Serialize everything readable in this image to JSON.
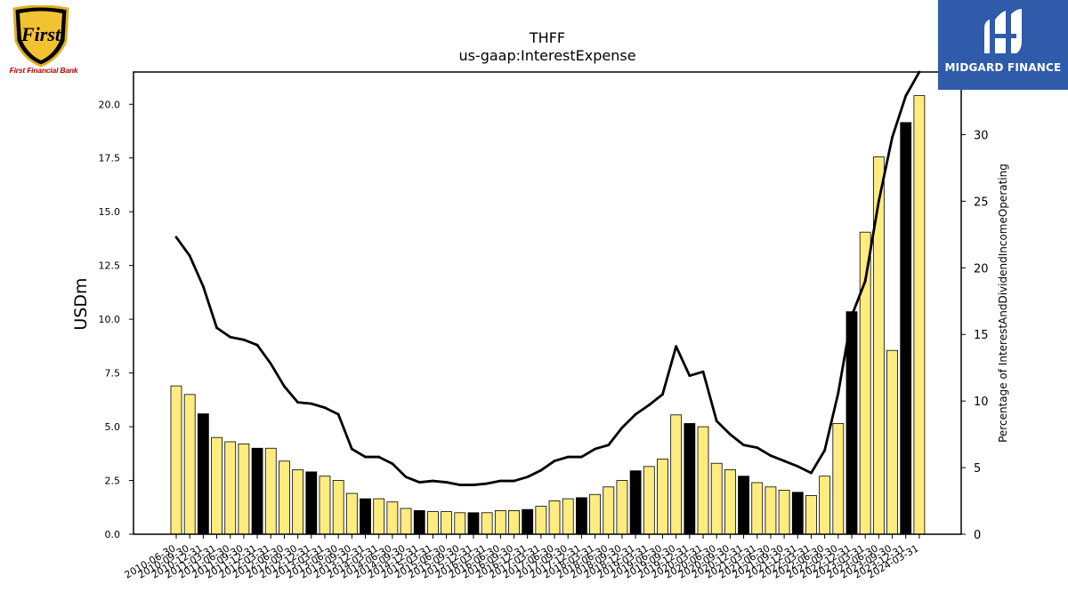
{
  "logos": {
    "left_brand": "First",
    "left_name": "First Financial Bank",
    "right_name": "MIDGARD FINANCE"
  },
  "chart_data": {
    "type": "bar",
    "title": "THFF",
    "subtitle": "us-gaap:InterestExpense",
    "ylabel": "USDm",
    "y2label": "Percentage of InterestAndDividendIncomeOperating",
    "ylim": [
      0,
      21.5
    ],
    "y2lim": [
      0,
      34.7
    ],
    "yticks": [
      "0.0",
      "2.5",
      "5.0",
      "7.5",
      "10.0",
      "12.5",
      "15.0",
      "17.5",
      "20.0"
    ],
    "y2ticks": [
      "0",
      "5",
      "10",
      "15",
      "20",
      "25",
      "30"
    ],
    "grid": false,
    "colors": {
      "bar_default": "#ffec80",
      "bar_q4": "#000000",
      "line": "#000000"
    },
    "categories": [
      "2010-06-30",
      "2010-09-30",
      "2010-12-31",
      "2011-03-31",
      "2011-06-30",
      "2011-09-30",
      "2011-12-31",
      "2012-03-31",
      "2012-06-30",
      "2012-09-30",
      "2012-12-31",
      "2013-03-31",
      "2013-06-30",
      "2013-09-30",
      "2013-12-31",
      "2014-03-31",
      "2014-06-30",
      "2014-09-30",
      "2014-12-31",
      "2015-03-31",
      "2015-06-30",
      "2015-09-30",
      "2015-12-31",
      "2016-03-31",
      "2016-06-30",
      "2016-09-30",
      "2016-12-31",
      "2017-03-31",
      "2017-06-30",
      "2017-09-30",
      "2017-12-31",
      "2018-03-31",
      "2018-06-30",
      "2018-09-30",
      "2018-12-31",
      "2019-03-31",
      "2019-06-30",
      "2019-09-30",
      "2019-12-31",
      "2020-03-31",
      "2020-06-30",
      "2020-09-30",
      "2020-12-31",
      "2021-03-31",
      "2021-06-30",
      "2021-09-30",
      "2021-12-31",
      "2022-03-31",
      "2022-06-30",
      "2022-09-30",
      "2022-12-31",
      "2023-03-31",
      "2023-06-30",
      "2023-09-30",
      "2023-12-31",
      "2024-03-31"
    ],
    "series": [
      {
        "name": "",
        "axis": "left",
        "type": "bar",
        "values": [
          6.9,
          6.5,
          5.6,
          4.5,
          4.3,
          4.2,
          4.0,
          4.0,
          3.4,
          3.0,
          2.9,
          2.7,
          2.5,
          1.9,
          1.65,
          1.65,
          1.5,
          1.2,
          1.1,
          1.05,
          1.05,
          1.0,
          1.0,
          1.0,
          1.1,
          1.1,
          1.15,
          1.3,
          1.55,
          1.65,
          1.7,
          1.85,
          2.2,
          2.5,
          2.95,
          3.15,
          3.5,
          5.55,
          5.15,
          5.0,
          3.3,
          3.0,
          2.7,
          2.4,
          2.2,
          2.05,
          1.95,
          1.8,
          2.7,
          5.15,
          10.35,
          14.05,
          17.55,
          8.55,
          19.15,
          20.4
        ]
      },
      {
        "name": "",
        "axis": "right",
        "type": "line",
        "values": [
          22.3,
          20.9,
          18.6,
          15.5,
          14.8,
          14.6,
          14.2,
          12.8,
          11.1,
          9.9,
          9.8,
          9.5,
          9.0,
          6.4,
          5.8,
          5.8,
          5.3,
          4.3,
          3.9,
          4.0,
          3.9,
          3.7,
          3.7,
          3.8,
          4.0,
          4.0,
          4.3,
          4.8,
          5.5,
          5.8,
          5.8,
          6.4,
          6.7,
          8.0,
          9.0,
          9.7,
          10.5,
          14.1,
          11.9,
          12.2,
          8.5,
          7.5,
          6.7,
          6.5,
          5.9,
          5.5,
          5.1,
          4.6,
          6.3,
          10.6,
          16.4,
          19.0,
          25.0,
          29.8,
          32.9,
          34.7
        ]
      }
    ]
  }
}
